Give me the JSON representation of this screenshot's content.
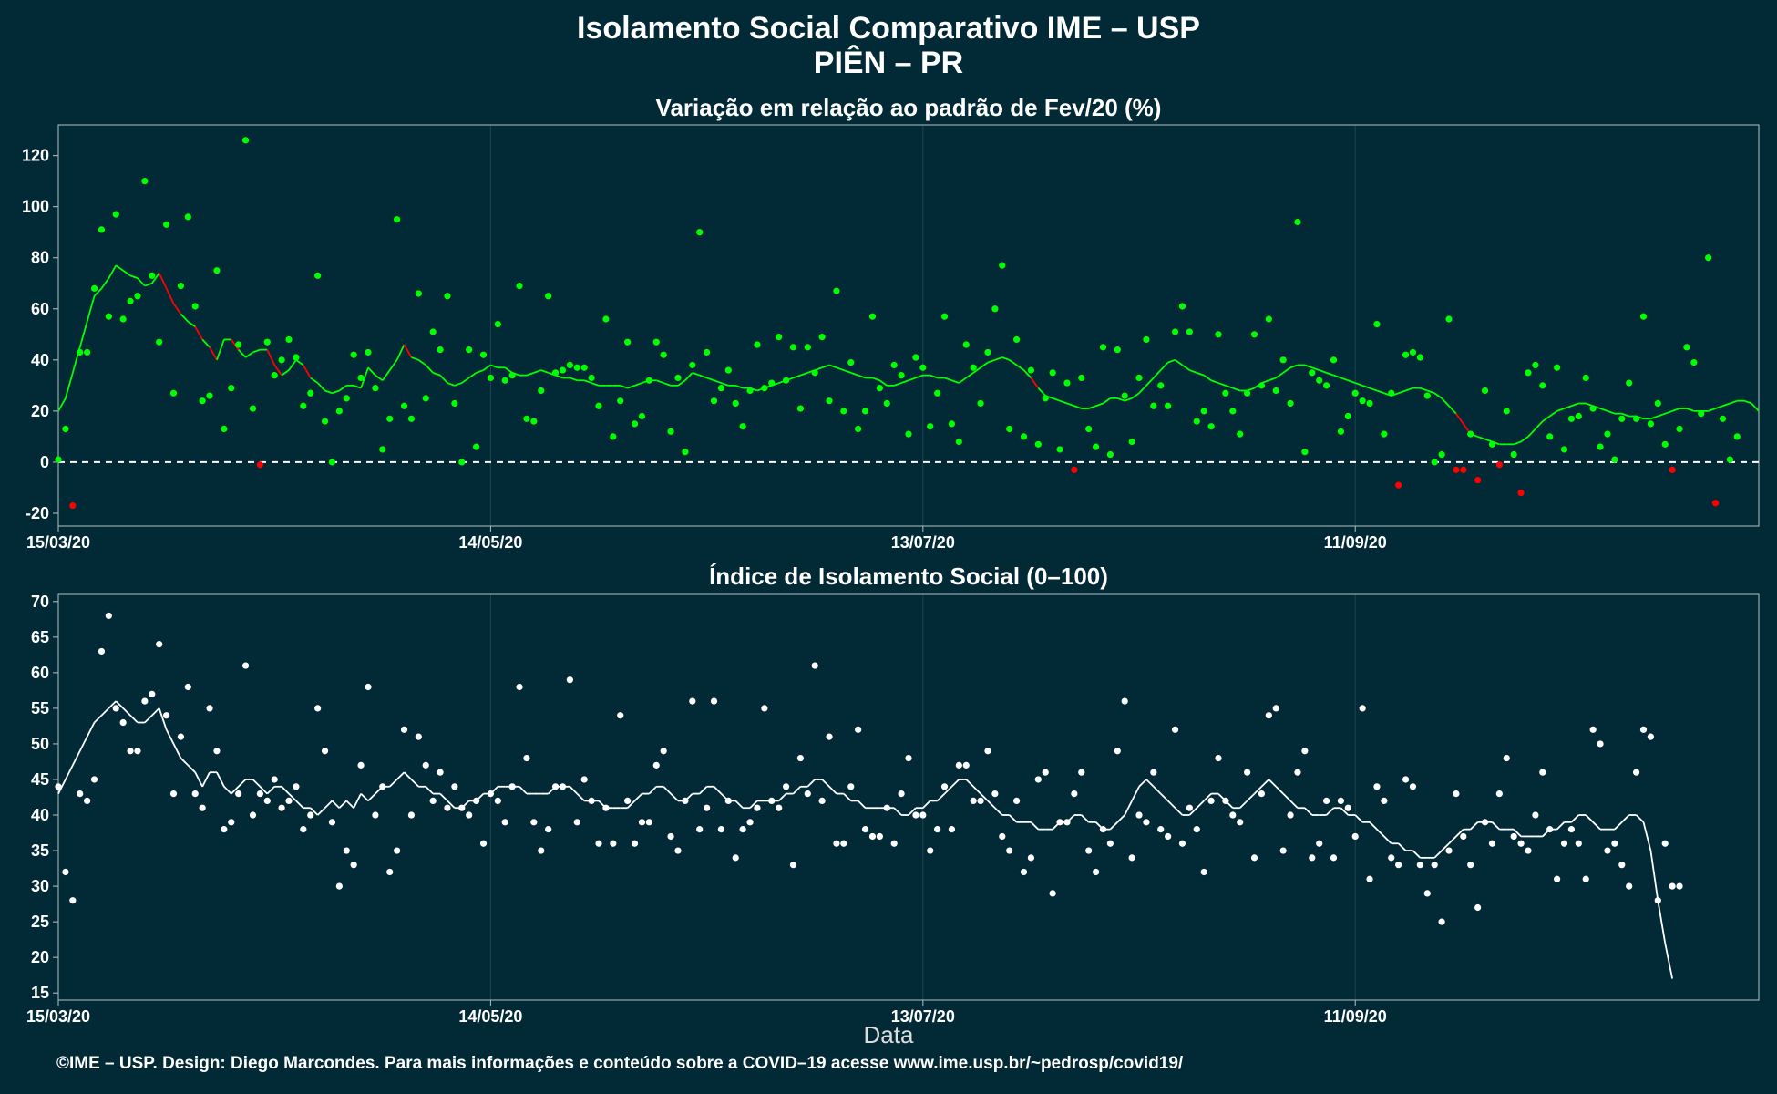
{
  "page": {
    "title": "Isolamento Social Comparativo IME – USP",
    "subtitle": "PIÊN – PR",
    "xlabel": "Data",
    "footer": "©IME – USP. Design: Diego Marcondes. Para mais informações e conteúdo sobre a COVID–19 acesse www.ime.usp.br/~pedrosp/covid19/"
  },
  "colors": {
    "background": "#022a36",
    "positive": "#00ff00",
    "negative": "#ff0000",
    "index": "#ffffff",
    "grid": "#1f4350",
    "frame": "#b4c0c4"
  },
  "chart_data": [
    {
      "type": "scatter",
      "title": "Variação em relação ao padrão de Fev/20 (%)",
      "x_start": "15/03/20",
      "x_ticks": [
        "15/03/20",
        "14/05/20",
        "13/07/20",
        "11/09/20"
      ],
      "x_tick_days": [
        0,
        60,
        120,
        180
      ],
      "xlim_days": [
        0,
        236
      ],
      "ylim": [
        -25,
        132
      ],
      "y_ticks": [
        -20,
        0,
        20,
        40,
        60,
        80,
        100,
        120
      ],
      "reference_line": 0,
      "series": [
        {
          "kind": "points",
          "values": [
            1,
            13,
            -17,
            43,
            43,
            68,
            91,
            57,
            97,
            56,
            63,
            65,
            110,
            73,
            47,
            93,
            27,
            69,
            96,
            61,
            24,
            26,
            75,
            13,
            29,
            46,
            126,
            21,
            -1,
            47,
            34,
            40,
            48,
            41,
            22,
            27,
            73,
            16,
            0,
            20,
            25,
            42,
            33,
            43,
            29,
            5,
            17,
            95,
            22,
            17,
            66,
            25,
            51,
            44,
            65,
            23,
            0,
            44,
            6,
            42,
            33,
            54,
            32,
            34,
            69,
            17,
            16,
            28,
            65,
            35,
            36,
            38,
            37,
            37,
            33,
            22,
            56,
            10,
            24,
            47,
            15,
            18,
            32,
            47,
            42,
            12,
            33,
            4,
            38,
            90,
            43,
            24,
            29,
            36,
            23,
            14,
            28,
            46,
            29,
            31,
            49,
            32,
            45,
            21,
            45,
            35,
            49,
            24,
            67,
            20,
            39,
            13,
            20,
            57,
            29,
            23,
            38,
            34,
            11,
            41,
            37,
            14,
            27,
            57,
            15,
            8,
            46,
            37,
            23,
            43,
            60,
            77,
            13,
            48,
            10,
            36,
            7,
            25,
            35,
            5,
            31,
            -3,
            33,
            13,
            6,
            45,
            3,
            44,
            26,
            8,
            33,
            48,
            22,
            30,
            22,
            51,
            61,
            51,
            16,
            20,
            14,
            50,
            27,
            20,
            11,
            27,
            50,
            30,
            56,
            28,
            40,
            23,
            94,
            4,
            35,
            32,
            30,
            40,
            12,
            18,
            27,
            24,
            23,
            54,
            11,
            27,
            -9,
            42,
            43,
            41,
            26,
            0,
            3,
            56,
            -3,
            -3,
            11,
            -7,
            28,
            7,
            -1,
            20,
            3,
            -12,
            35,
            38,
            30,
            10,
            37,
            5,
            17,
            18,
            33,
            21,
            6,
            11,
            1,
            17,
            31,
            17,
            57,
            15,
            23,
            7,
            -3,
            13,
            45,
            39,
            19,
            80,
            -16,
            17,
            1,
            10
          ]
        },
        {
          "kind": "moving_average",
          "values": [
            20,
            25,
            35,
            45,
            55,
            65,
            68,
            72,
            77,
            75,
            73,
            72,
            69,
            70,
            74,
            68,
            62,
            58,
            55,
            53,
            48,
            45,
            40,
            48,
            48,
            44,
            41,
            43,
            44,
            44,
            38,
            34,
            36,
            40,
            38,
            33,
            31,
            28,
            27,
            28,
            30,
            30,
            29,
            37,
            34,
            32,
            36,
            40,
            46,
            41,
            40,
            38,
            35,
            34,
            31,
            30,
            31,
            33,
            35,
            36,
            38,
            37,
            37,
            35,
            34,
            34,
            35,
            36,
            35,
            34,
            33,
            33,
            32,
            32,
            31,
            30,
            30,
            30,
            30,
            29,
            30,
            31,
            32,
            32,
            31,
            30,
            30,
            32,
            35,
            34,
            33,
            32,
            31,
            30,
            30,
            29,
            29,
            28,
            29,
            30,
            31,
            32,
            33,
            34,
            35,
            36,
            37,
            38,
            37,
            36,
            35,
            34,
            33,
            33,
            32,
            30,
            30,
            31,
            32,
            33,
            34,
            34,
            33,
            33,
            32,
            31,
            33,
            35,
            37,
            39,
            40,
            41,
            40,
            38,
            36,
            33,
            29,
            26,
            25,
            24,
            23,
            22,
            21,
            21,
            22,
            23,
            25,
            25,
            24,
            25,
            27,
            30,
            33,
            36,
            39,
            40,
            38,
            36,
            35,
            34,
            32,
            31,
            30,
            29,
            28,
            28,
            29,
            31,
            32,
            33,
            35,
            37,
            38,
            38,
            37,
            36,
            35,
            34,
            33,
            32,
            31,
            30,
            29,
            28,
            27,
            26,
            27,
            28,
            29,
            29,
            28,
            27,
            25,
            22,
            19,
            15,
            11,
            10,
            9,
            8,
            7,
            7,
            7,
            8,
            10,
            13,
            16,
            18,
            20,
            21,
            22,
            23,
            23,
            22,
            21,
            20,
            19,
            19,
            18,
            18,
            17,
            17,
            18,
            19,
            20,
            21,
            21,
            20,
            20,
            20,
            21,
            22,
            23,
            24,
            24,
            23,
            20
          ]
        }
      ]
    },
    {
      "type": "scatter",
      "title": "Índice de Isolamento Social (0–100)",
      "x_start": "15/03/20",
      "x_ticks": [
        "15/03/20",
        "14/05/20",
        "13/07/20",
        "11/09/20"
      ],
      "x_tick_days": [
        0,
        60,
        120,
        180
      ],
      "xlim_days": [
        0,
        236
      ],
      "ylim": [
        14,
        71
      ],
      "y_ticks": [
        15,
        20,
        25,
        30,
        35,
        40,
        45,
        50,
        55,
        60,
        65,
        70
      ],
      "series": [
        {
          "kind": "points",
          "values": [
            44,
            32,
            28,
            43,
            42,
            45,
            63,
            68,
            55,
            53,
            49,
            49,
            56,
            57,
            64,
            54,
            43,
            51,
            58,
            43,
            41,
            55,
            49,
            38,
            39,
            43,
            61,
            40,
            43,
            42,
            45,
            41,
            42,
            44,
            38,
            40,
            55,
            49,
            39,
            30,
            35,
            33,
            47,
            58,
            40,
            44,
            32,
            35,
            52,
            40,
            51,
            47,
            42,
            46,
            41,
            44,
            41,
            40,
            42,
            36,
            43,
            42,
            39,
            44,
            58,
            48,
            39,
            35,
            38,
            44,
            44,
            59,
            39,
            45,
            42,
            36,
            41,
            36,
            54,
            42,
            36,
            39,
            39,
            47,
            49,
            37,
            35,
            42,
            56,
            38,
            41,
            56,
            38,
            42,
            34,
            38,
            39,
            41,
            55,
            42,
            41,
            44,
            33,
            48,
            43,
            61,
            42,
            51,
            36,
            36,
            44,
            52,
            38,
            37,
            37,
            41,
            36,
            43,
            48,
            40,
            40,
            35,
            38,
            44,
            38,
            47,
            47,
            42,
            42,
            49,
            43,
            37,
            35,
            42,
            32,
            34,
            45,
            46,
            29,
            39,
            39,
            43,
            46,
            35,
            32,
            38,
            36,
            49,
            56,
            34,
            40,
            39,
            46,
            38,
            37,
            52,
            36,
            41,
            38,
            32,
            42,
            48,
            42,
            40,
            39,
            46,
            34,
            43,
            54,
            55,
            35,
            40,
            46,
            49,
            34,
            36,
            42,
            34,
            42,
            41,
            37,
            55,
            31,
            44,
            42,
            34,
            33,
            45,
            44,
            33,
            29,
            33,
            25,
            35,
            43,
            37,
            33,
            27,
            39,
            36,
            43,
            48,
            37,
            36,
            35,
            40,
            46,
            38,
            31,
            36,
            38,
            36,
            31,
            52,
            50,
            35,
            36,
            33,
            30,
            46,
            52,
            51,
            28,
            36,
            30,
            30
          ]
        },
        {
          "kind": "moving_average",
          "values": [
            43,
            45,
            47,
            49,
            51,
            53,
            54,
            55,
            56,
            55,
            54,
            53,
            53,
            54,
            55,
            52,
            50,
            48,
            47,
            46,
            44,
            46,
            46,
            44,
            43,
            44,
            45,
            45,
            44,
            43,
            44,
            44,
            43,
            42,
            41,
            41,
            40,
            41,
            42,
            41,
            42,
            41,
            43,
            42,
            43,
            44,
            44,
            45,
            46,
            45,
            44,
            44,
            43,
            43,
            42,
            41,
            41,
            42,
            42,
            43,
            43,
            44,
            44,
            44,
            44,
            43,
            43,
            43,
            43,
            44,
            44,
            44,
            43,
            42,
            42,
            42,
            41,
            41,
            41,
            41,
            42,
            43,
            43,
            44,
            44,
            43,
            42,
            42,
            43,
            43,
            44,
            44,
            43,
            42,
            42,
            41,
            41,
            42,
            42,
            42,
            42,
            43,
            43,
            44,
            44,
            45,
            45,
            44,
            43,
            43,
            42,
            42,
            41,
            41,
            41,
            41,
            41,
            40,
            40,
            41,
            41,
            42,
            42,
            43,
            44,
            45,
            45,
            44,
            43,
            42,
            41,
            40,
            40,
            39,
            39,
            39,
            38,
            38,
            38,
            39,
            39,
            40,
            40,
            39,
            39,
            38,
            38,
            39,
            40,
            42,
            44,
            45,
            44,
            43,
            42,
            41,
            40,
            40,
            41,
            42,
            43,
            43,
            42,
            41,
            41,
            42,
            43,
            44,
            45,
            44,
            43,
            42,
            41,
            41,
            40,
            40,
            40,
            41,
            41,
            40,
            40,
            39,
            39,
            38,
            37,
            36,
            36,
            35,
            35,
            34,
            34,
            34,
            35,
            36,
            37,
            38,
            38,
            39,
            39,
            39,
            38,
            38,
            38,
            37,
            37,
            37,
            37,
            38,
            38,
            39,
            39,
            40,
            40,
            39,
            38,
            38,
            38,
            39,
            40,
            40,
            39,
            35,
            28,
            22,
            17
          ]
        }
      ]
    }
  ]
}
